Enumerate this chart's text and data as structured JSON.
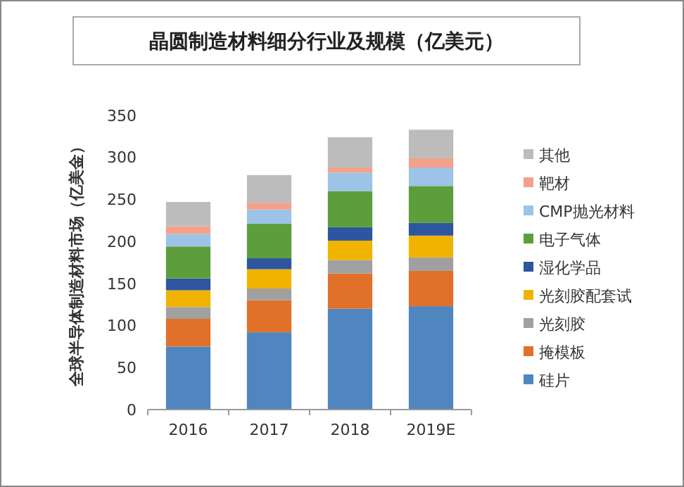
{
  "chart_data": {
    "type": "bar",
    "stacked": true,
    "title": "晶圆制造材料细分行业及规模（亿美元）",
    "ylabel": "全球半导体制造材料市场（亿美金）",
    "categories": [
      "2016",
      "2017",
      "2018",
      "2019E"
    ],
    "ylim": [
      0,
      350
    ],
    "yticks": [
      0,
      50,
      100,
      150,
      200,
      250,
      300,
      350
    ],
    "legend": "right",
    "grid": false,
    "series": [
      {
        "name": "硅片",
        "color": "#4f86c0",
        "values": [
          75,
          92,
          120,
          123
        ]
      },
      {
        "name": "掩模板",
        "color": "#e0702a",
        "values": [
          33,
          38,
          42,
          42
        ]
      },
      {
        "name": "光刻胶",
        "color": "#a0a0a0",
        "values": [
          14,
          14,
          16,
          16
        ]
      },
      {
        "name": "光刻胶配套试",
        "color": "#f0b400",
        "values": [
          20,
          23,
          23,
          26
        ]
      },
      {
        "name": "湿化学品",
        "color": "#2d55a0",
        "values": [
          14,
          13,
          16,
          15
        ]
      },
      {
        "name": "电子气体",
        "color": "#5c9e3c",
        "values": [
          38,
          41,
          43,
          44
        ]
      },
      {
        "name": "CMP抛光材料",
        "color": "#9dc3e6",
        "values": [
          15,
          17,
          22,
          22
        ]
      },
      {
        "name": "靶材",
        "color": "#f4a08a",
        "values": [
          9,
          8,
          6,
          11
        ]
      },
      {
        "name": "其他",
        "color": "#bcbcbc",
        "values": [
          29,
          33,
          36,
          34
        ]
      }
    ]
  }
}
